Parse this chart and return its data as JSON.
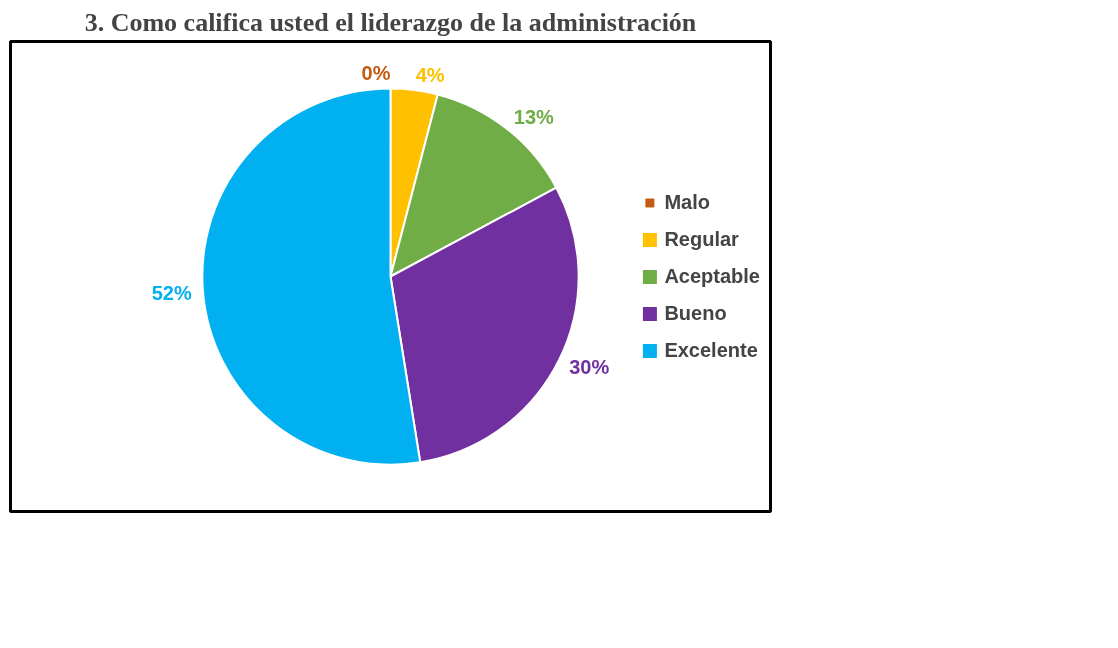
{
  "chart_data": {
    "type": "pie",
    "title": "3. Como califica usted el liderazgo de la administración",
    "categories": [
      "Malo",
      "Regular",
      "Aceptable",
      "Bueno",
      "Excelente"
    ],
    "values": [
      0,
      4,
      13,
      30,
      52
    ],
    "colors": [
      "#c55a11",
      "#ffc000",
      "#70ad47",
      "#7030a0",
      "#00b0f0"
    ],
    "value_labels": [
      "0%",
      "4%",
      "13%",
      "30%",
      "52%"
    ],
    "legend": "right"
  }
}
